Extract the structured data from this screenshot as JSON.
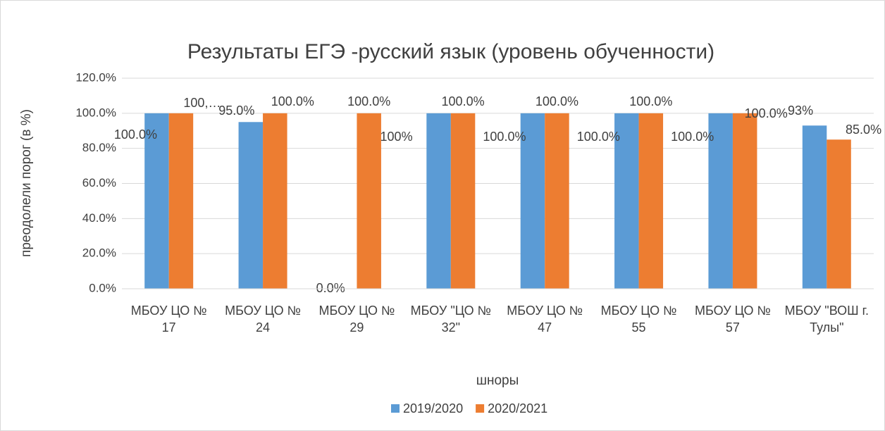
{
  "chart_data": {
    "type": "bar",
    "title": "Результаты ЕГЭ -русский язык (уровень обученности)",
    "y_label": "преодолели порог (в %)",
    "x_label": "шноры",
    "categories": [
      "МБОУ ЦО № 17",
      "МБОУ ЦО № 24",
      "МБОУ ЦО № 29",
      "МБОУ \"ЦО № 32\"",
      "МБОУ ЦО № 47",
      "МБОУ ЦО № 55",
      "МБОУ ЦО № 57",
      "МБОУ \"ВОШ г. Тулы\""
    ],
    "series": [
      {
        "name": "2019/2020",
        "color": "#5b9bd5",
        "values": [
          100,
          95,
          0,
          100,
          100,
          100,
          100,
          93
        ],
        "value_labels": [
          "100.0%",
          "95.0%",
          "0.0%",
          "100%",
          "100.0%",
          "100.0%",
          "100.0%",
          "93%"
        ]
      },
      {
        "name": "2020/2021",
        "color": "#ed7d31",
        "values": [
          100,
          100,
          100,
          100,
          100,
          100,
          100,
          85
        ],
        "value_labels": [
          "100,…",
          "100.0%",
          "100.0%",
          "100.0%",
          "100.0%",
          "100.0%",
          "100.0%",
          "85.0%"
        ]
      }
    ],
    "ylim": [
      0,
      120
    ],
    "yticks": [
      {
        "value": 0,
        "label": "0.0%"
      },
      {
        "value": 20,
        "label": "20.0%"
      },
      {
        "value": 40,
        "label": "40.0%"
      },
      {
        "value": 60,
        "label": "60.0%"
      },
      {
        "value": 80,
        "label": "80.0%"
      },
      {
        "value": 100,
        "label": "100.0%"
      },
      {
        "value": 120,
        "label": "120.0%"
      }
    ],
    "grid": true,
    "legend": "bottom"
  }
}
